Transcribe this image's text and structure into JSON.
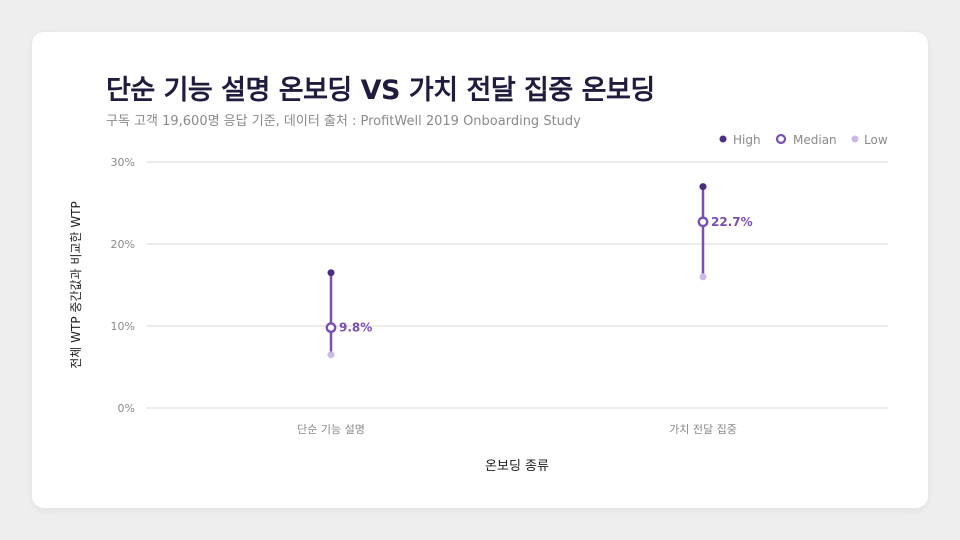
{
  "header": {
    "title": "단순 기능 설명 온보딩 VS 가치 전달 집중 온보딩",
    "subtitle": "구독 고객 19,600명 응답 기준, 데이터 출처 : ProfitWell 2019 Onboarding Study"
  },
  "colors": {
    "high": "#4b2e83",
    "median": "#7a4fb4",
    "low": "#cdb8ea",
    "grid": "#d9d9d9",
    "axis_text": "#8a8a8a",
    "label_text": "#7a4fb4"
  },
  "chart_data": {
    "type": "range",
    "title": "단순 기능 설명 온보딩 VS 가치 전달 집중 온보딩",
    "xlabel": "온보딩 종류",
    "ylabel": "전체 WTP 중간값과 비교한 WTP",
    "ylim": [
      0,
      30
    ],
    "yticks": [
      0,
      10,
      20,
      30
    ],
    "ytick_labels": [
      "0%",
      "10%",
      "20%",
      "30%"
    ],
    "grid": true,
    "legend_position": "top-right",
    "categories": [
      "단순 기능 설명",
      "가치 전달 집중"
    ],
    "series": [
      {
        "name": "High",
        "values": [
          16.5,
          27.0
        ]
      },
      {
        "name": "Median",
        "values": [
          9.8,
          22.7
        ]
      },
      {
        "name": "Low",
        "values": [
          6.5,
          16.0
        ]
      }
    ],
    "data_labels": [
      "9.8%",
      "22.7%"
    ]
  }
}
